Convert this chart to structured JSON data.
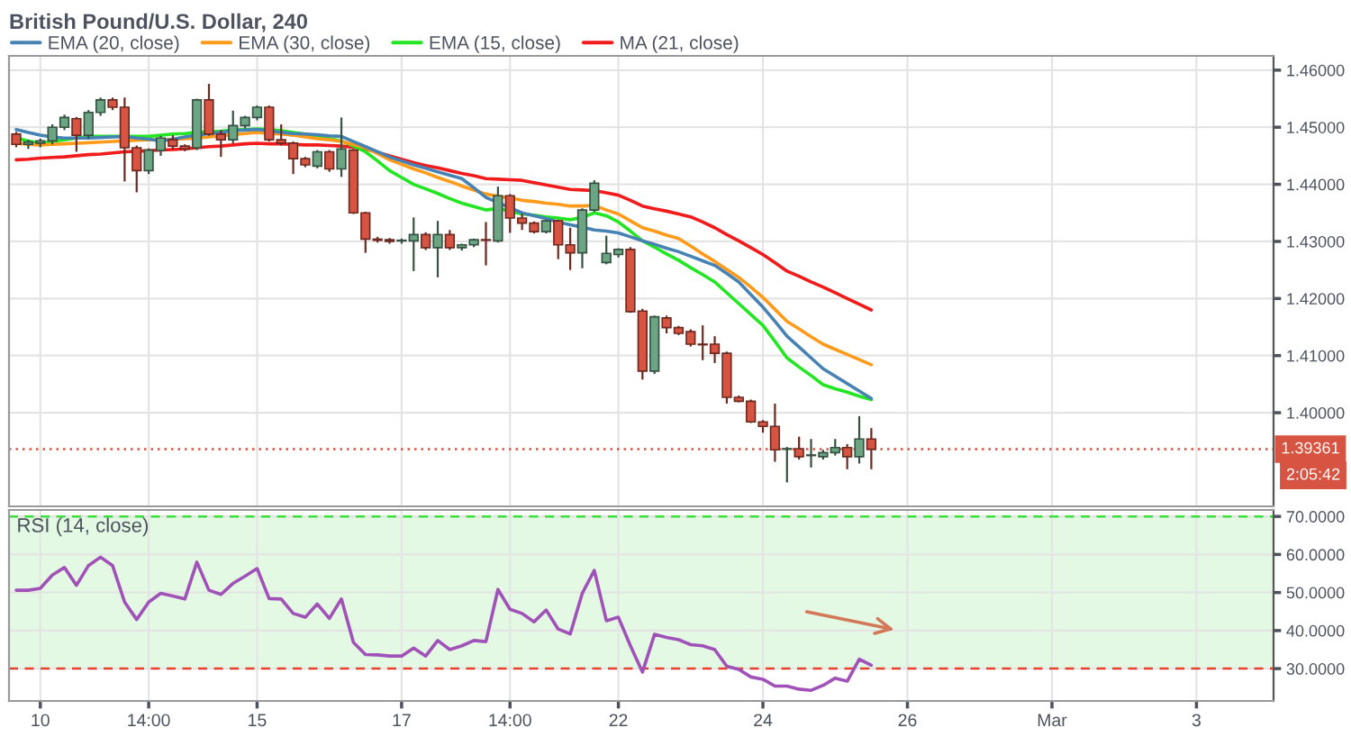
{
  "chart_data": [
    {
      "type": "candlestick",
      "title": "British Pound/U.S. Dollar, 240",
      "categories": [
        null,
        null,
        null,
        null,
        null,
        null,
        null,
        null,
        null,
        null,
        null,
        null,
        null,
        null,
        null,
        null,
        null,
        null,
        null,
        null,
        null,
        null,
        null,
        null,
        null,
        null,
        null,
        null,
        null,
        null,
        null,
        null,
        null,
        null,
        null,
        null,
        null,
        null,
        null,
        null,
        null,
        null,
        null,
        null,
        null,
        null,
        null,
        null,
        null,
        null,
        null,
        null,
        null,
        null,
        null,
        null,
        null,
        null,
        null,
        null,
        null,
        null,
        null,
        null,
        null,
        null,
        null,
        null,
        null,
        null,
        null,
        null,
        null,
        null,
        null,
        null,
        null,
        null,
        null,
        null,
        null,
        null,
        null,
        null,
        null,
        null,
        null,
        null,
        null,
        null,
        null,
        null,
        null,
        null,
        null,
        null,
        null,
        null,
        null,
        null,
        null,
        null,
        null,
        null,
        null
      ],
      "ohlc": [
        [
          1.4488,
          1.4492,
          1.4465,
          1.447
        ],
        [
          1.447,
          1.4478,
          1.4462,
          1.4474
        ],
        [
          1.4472,
          1.448,
          1.4465,
          1.4476
        ],
        [
          1.4476,
          1.4505,
          1.447,
          1.45
        ],
        [
          1.45,
          1.4522,
          1.4495,
          1.4517
        ],
        [
          1.4515,
          1.4518,
          1.4457,
          1.4486
        ],
        [
          1.4486,
          1.453,
          1.448,
          1.4526
        ],
        [
          1.4526,
          1.4552,
          1.452,
          1.4548
        ],
        [
          1.4548,
          1.4552,
          1.453,
          1.4535
        ],
        [
          1.4535,
          1.4552,
          1.4405,
          1.4464
        ],
        [
          1.4464,
          1.4468,
          1.4386,
          1.4424
        ],
        [
          1.4424,
          1.4463,
          1.4418,
          1.446
        ],
        [
          1.4459,
          1.4485,
          1.445,
          1.4481
        ],
        [
          1.4478,
          1.4486,
          1.4462,
          1.4467
        ],
        [
          1.4467,
          1.447,
          1.4458,
          1.4462
        ],
        [
          1.4464,
          1.455,
          1.446,
          1.4548
        ],
        [
          1.4548,
          1.4576,
          1.4485,
          1.4488
        ],
        [
          1.4488,
          1.4495,
          1.4448,
          1.4478
        ],
        [
          1.4478,
          1.4529,
          1.4472,
          1.4503
        ],
        [
          1.4503,
          1.452,
          1.4498,
          1.4517
        ],
        [
          1.4517,
          1.4538,
          1.4512,
          1.4535
        ],
        [
          1.4535,
          1.4538,
          1.4475,
          1.4478
        ],
        [
          1.4478,
          1.4505,
          1.4468,
          1.4472
        ],
        [
          1.4472,
          1.4475,
          1.4418,
          1.4445
        ],
        [
          1.4445,
          1.4448,
          1.443,
          1.4434
        ],
        [
          1.4432,
          1.446,
          1.4428,
          1.4457
        ],
        [
          1.4457,
          1.446,
          1.4422,
          1.4427
        ],
        [
          1.4427,
          1.4517,
          1.4413,
          1.4462
        ],
        [
          1.446,
          1.4462,
          1.4348,
          1.435
        ],
        [
          1.435,
          1.4352,
          1.428,
          1.4304
        ],
        [
          1.4304,
          1.4308,
          1.4298,
          1.4302
        ],
        [
          1.4303,
          1.4306,
          1.4296,
          1.43
        ],
        [
          1.4301,
          1.4305,
          1.4296,
          1.4302
        ],
        [
          1.4301,
          1.4342,
          1.4248,
          1.4312
        ],
        [
          1.4312,
          1.4316,
          1.4285,
          1.4289
        ],
        [
          1.4289,
          1.4336,
          1.4237,
          1.4312
        ],
        [
          1.4312,
          1.432,
          1.4285,
          1.4289
        ],
        [
          1.4289,
          1.4296,
          1.4284,
          1.4294
        ],
        [
          1.4294,
          1.4305,
          1.429,
          1.4303
        ],
        [
          1.4303,
          1.4334,
          1.4258,
          1.4302
        ],
        [
          1.4301,
          1.4396,
          1.4298,
          1.438
        ],
        [
          1.438,
          1.4383,
          1.4315,
          1.4341
        ],
        [
          1.4341,
          1.4348,
          1.432,
          1.4332
        ],
        [
          1.4332,
          1.4335,
          1.4314,
          1.4317
        ],
        [
          1.4317,
          1.4338,
          1.4314,
          1.4336
        ],
        [
          1.4336,
          1.4338,
          1.4269,
          1.4294
        ],
        [
          1.4294,
          1.4324,
          1.425,
          1.428
        ],
        [
          1.428,
          1.4358,
          1.4253,
          1.4355
        ],
        [
          1.4355,
          1.4407,
          1.4352,
          1.4402
        ],
        [
          1.4263,
          1.431,
          1.426,
          1.4279
        ],
        [
          1.4277,
          1.4288,
          1.4272,
          1.4286
        ],
        [
          1.4286,
          1.429,
          1.4175,
          1.4177
        ],
        [
          1.4178,
          1.4182,
          1.4058,
          1.4073
        ],
        [
          1.4073,
          1.417,
          1.4068,
          1.4168
        ],
        [
          1.4166,
          1.417,
          1.4139,
          1.4149
        ],
        [
          1.4149,
          1.4152,
          1.4136,
          1.4139
        ],
        [
          1.4142,
          1.4146,
          1.4116,
          1.412
        ],
        [
          1.412,
          1.4153,
          1.4092,
          1.4119
        ],
        [
          1.412,
          1.4134,
          1.4087,
          1.4104
        ],
        [
          1.4104,
          1.4107,
          1.4016,
          1.4027
        ],
        [
          1.4027,
          1.403,
          1.4018,
          1.402
        ],
        [
          1.402,
          1.4023,
          1.3982,
          1.3984
        ],
        [
          1.3984,
          1.3987,
          1.3965,
          1.3976
        ],
        [
          1.3976,
          1.4016,
          1.3914,
          1.3935
        ],
        [
          1.3936,
          1.394,
          1.3878,
          1.3937
        ],
        [
          1.3937,
          1.3958,
          1.3918,
          1.3923
        ],
        [
          1.3925,
          1.3954,
          1.3904,
          1.3926
        ],
        [
          1.3923,
          1.3935,
          1.3918,
          1.393
        ],
        [
          1.393,
          1.3954,
          1.3925,
          1.3939
        ],
        [
          1.3939,
          1.3945,
          1.3901,
          1.3923
        ],
        [
          1.3923,
          1.3994,
          1.3911,
          1.3954
        ],
        [
          1.3954,
          1.3973,
          1.3901,
          1.3936
        ],
        null,
        null,
        null,
        null,
        null,
        null,
        null,
        null,
        null,
        null,
        null,
        null,
        null,
        null,
        null,
        null,
        null,
        null,
        null,
        null,
        null,
        null,
        null,
        null,
        null,
        null,
        null,
        null,
        null,
        null,
        null,
        null,
        null
      ],
      "colors": [
        "#d75442",
        "#6ba583",
        "#6ba583",
        "#6ba583",
        "#6ba583",
        "#d75442",
        "#6ba583",
        "#6ba583",
        "#d75442",
        "#d75442",
        "#d75442",
        "#6ba583",
        "#6ba583",
        "#d75442",
        "#d75442",
        "#6ba583",
        "#d75442",
        "#d75442",
        "#6ba583",
        "#6ba583",
        "#6ba583",
        "#d75442",
        "#d75442",
        "#d75442",
        "#d75442",
        "#6ba583",
        "#d75442",
        "#6ba583",
        "#d75442",
        "#d75442",
        "#d75442",
        "#d75442",
        "#6ba583",
        "#6ba583",
        "#d75442",
        "#6ba583",
        "#d75442",
        "#6ba583",
        "#6ba583",
        "#d75442",
        "#6ba583",
        "#d75442",
        "#d75442",
        "#d75442",
        "#6ba583",
        "#d75442",
        "#d75442",
        "#6ba583",
        "#6ba583",
        "#6ba583",
        "#6ba583",
        "#d75442",
        "#d75442",
        "#6ba583",
        "#d75442",
        "#d75442",
        "#d75442",
        "#d75442",
        "#d75442",
        "#d75442",
        "#d75442",
        "#d75442",
        "#d75442",
        "#d75442",
        "#6ba583",
        "#d75442",
        "#6ba583",
        "#6ba583",
        "#6ba583",
        "#d75442",
        "#6ba583",
        "#d75442",
        null,
        null,
        null,
        null,
        null,
        null,
        null,
        null,
        null,
        null,
        null,
        null,
        null,
        null,
        null,
        null,
        null,
        null,
        null,
        null,
        null,
        null,
        null,
        null,
        null,
        null,
        null,
        null,
        null,
        null,
        null,
        null,
        null
      ],
      "series": [
        {
          "type": "line",
          "name": "EMA (20, close)",
          "color": "#4682b4",
          "values": [
            1.4496,
            1.4491,
            1.4486,
            1.4483,
            1.4481,
            1.4481,
            1.4481,
            1.4482,
            1.4483,
            1.4484,
            1.4481,
            1.4479,
            1.4476,
            1.4479,
            1.4483,
            1.4486,
            1.4489,
            1.4491,
            1.4494,
            1.4495,
            1.4496,
            1.4494,
            1.4491,
            1.4489,
            1.4488,
            1.4487,
            1.4485,
            1.4484,
            1.4475,
            1.4466,
            1.4457,
            1.4448,
            1.4441,
            1.4434,
            1.4428,
            1.4422,
            1.4416,
            1.441,
            1.4394,
            1.4377,
            1.4368,
            1.4359,
            1.435,
            1.4345,
            1.434,
            1.4334,
            1.4329,
            1.4325,
            1.432,
            1.4318,
            1.4315,
            1.4308,
            1.4301,
            1.4295,
            1.4288,
            1.4282,
            1.4274,
            1.4266,
            1.4258,
            1.4244,
            1.4229,
            1.4207,
            1.4185,
            1.416,
            1.4134,
            1.4115,
            1.4096,
            1.4077,
            1.4064,
            1.4051,
            1.4038,
            1.4025,
            null,
            null,
            null,
            null,
            null,
            null,
            null,
            null,
            null,
            null,
            null,
            null,
            null,
            null,
            null,
            null,
            null,
            null,
            null,
            null,
            null,
            null,
            null,
            null,
            null,
            null,
            null,
            null,
            null,
            null,
            null,
            null,
            null
          ]
        },
        {
          "type": "line",
          "name": "EMA (30, close)",
          "color": "#ff9a1a",
          "values": [
            1.4472,
            1.447,
            1.4469,
            1.447,
            1.4471,
            1.4472,
            1.4473,
            1.4474,
            1.4475,
            1.4476,
            1.4477,
            1.4478,
            1.4478,
            1.4479,
            1.448,
            1.4481,
            1.4483,
            1.4485,
            1.4487,
            1.4489,
            1.4491,
            1.4489,
            1.4488,
            1.4486,
            1.4483,
            1.448,
            1.4478,
            1.4475,
            1.447,
            1.4464,
            1.4454,
            1.4443,
            1.4435,
            1.4427,
            1.442,
            1.4412,
            1.4405,
            1.4397,
            1.439,
            1.4383,
            1.4379,
            1.4376,
            1.4372,
            1.437,
            1.4367,
            1.4365,
            1.4362,
            1.4362,
            1.4363,
            1.4355,
            1.4348,
            1.4336,
            1.4324,
            1.4318,
            1.4311,
            1.4305,
            1.4292,
            1.4278,
            1.4265,
            1.4251,
            1.4237,
            1.422,
            1.4202,
            1.4181,
            1.416,
            1.4147,
            1.4133,
            1.412,
            1.4111,
            1.4102,
            1.4093,
            1.4084,
            null,
            null,
            null,
            null,
            null,
            null,
            null,
            null,
            null,
            null,
            null,
            null,
            null,
            null,
            null,
            null,
            null,
            null,
            null,
            null,
            null,
            null,
            null,
            null,
            null,
            null,
            null,
            null,
            null,
            null,
            null,
            null,
            null
          ]
        },
        {
          "type": "line",
          "name": "EMA (15, close)",
          "color": "#22e622",
          "values": [
            1.4481,
            1.4476,
            1.4472,
            1.4475,
            1.4478,
            1.4481,
            1.4484,
            1.4484,
            1.4484,
            1.4484,
            1.4484,
            1.4484,
            1.4486,
            1.4488,
            1.4489,
            1.4491,
            1.4492,
            1.4493,
            1.4495,
            1.4496,
            1.4497,
            1.4496,
            1.4494,
            1.4491,
            1.4488,
            1.4484,
            1.448,
            1.4476,
            1.4467,
            1.4457,
            1.4441,
            1.4424,
            1.4412,
            1.44,
            1.4392,
            1.4384,
            1.4375,
            1.4367,
            1.4361,
            1.4355,
            1.4358,
            1.4353,
            1.4348,
            1.4346,
            1.4343,
            1.4341,
            1.4338,
            1.4342,
            1.435,
            1.4345,
            1.4334,
            1.4318,
            1.4301,
            1.429,
            1.4278,
            1.4267,
            1.4254,
            1.4242,
            1.4229,
            1.421,
            1.4191,
            1.4172,
            1.4153,
            1.4125,
            1.4096,
            1.408,
            1.4065,
            1.4049,
            1.4042,
            1.4036,
            1.4029,
            1.4023,
            null,
            null,
            null,
            null,
            null,
            null,
            null,
            null,
            null,
            null,
            null,
            null,
            null,
            null,
            null,
            null,
            null,
            null,
            null,
            null,
            null,
            null,
            null,
            null,
            null,
            null,
            null,
            null,
            null,
            null,
            null,
            null,
            null
          ]
        },
        {
          "type": "line",
          "name": "MA (21, close)",
          "color": "#f21b1b",
          "values": [
            1.4443,
            1.4444,
            1.4446,
            1.4447,
            1.4448,
            1.445,
            1.4452,
            1.4453,
            1.4455,
            1.4457,
            1.4458,
            1.4459,
            1.446,
            1.4461,
            1.4462,
            1.4464,
            1.4466,
            1.4467,
            1.4469,
            1.4471,
            1.4472,
            1.4471,
            1.4471,
            1.447,
            1.4469,
            1.4469,
            1.4468,
            1.4467,
            1.4465,
            1.4462,
            1.4456,
            1.445,
            1.4444,
            1.4438,
            1.4433,
            1.4429,
            1.4424,
            1.4419,
            1.4415,
            1.441,
            1.4409,
            1.4408,
            1.4407,
            1.4403,
            1.4399,
            1.4395,
            1.4391,
            1.439,
            1.4389,
            1.4385,
            1.4381,
            1.4372,
            1.4362,
            1.4357,
            1.4353,
            1.4348,
            1.4343,
            1.4334,
            1.4324,
            1.4312,
            1.4301,
            1.4289,
            1.4277,
            1.4263,
            1.4248,
            1.4239,
            1.4229,
            1.422,
            1.421,
            1.42,
            1.419,
            1.418,
            null,
            null,
            null,
            null,
            null,
            null,
            null,
            null,
            null,
            null,
            null,
            null,
            null,
            null,
            null,
            null,
            null,
            null,
            null,
            null,
            null,
            null,
            null,
            null,
            null,
            null,
            null,
            null,
            null,
            null,
            null,
            null,
            null
          ]
        }
      ],
      "ylim": [
        1.3836,
        1.4625
      ],
      "yticks": [
        {
          "value": 1.4,
          "label": "1.40000"
        },
        {
          "value": 1.41,
          "label": "1.41000"
        },
        {
          "value": 1.42,
          "label": "1.42000"
        },
        {
          "value": 1.43,
          "label": "1.43000"
        },
        {
          "value": 1.44,
          "label": "1.44000"
        },
        {
          "value": 1.45,
          "label": "1.45000"
        },
        {
          "value": 1.46,
          "label": "1.46000"
        }
      ],
      "tick_labels": "y",
      "grid": true,
      "legend": "top left",
      "ref_lines": [
        {
          "axis": "y",
          "value": 1.39361,
          "label": "1.39361",
          "color": "#d75442",
          "line_style": "dotted"
        }
      ],
      "annotations": [
        "2:05:42"
      ]
    },
    {
      "type": "line",
      "title": "RSI (14, close)",
      "categories": [
        null,
        null,
        "10",
        null,
        null,
        null,
        null,
        null,
        null,
        null,
        null,
        "14:00",
        null,
        null,
        null,
        null,
        null,
        null,
        null,
        null,
        "15",
        null,
        null,
        null,
        null,
        null,
        null,
        null,
        null,
        null,
        null,
        null,
        "17",
        null,
        null,
        null,
        null,
        null,
        null,
        null,
        null,
        "14:00",
        null,
        null,
        null,
        null,
        null,
        null,
        null,
        null,
        "22",
        null,
        null,
        null,
        null,
        null,
        null,
        null,
        null,
        null,
        null,
        null,
        "24",
        null,
        null,
        null,
        null,
        null,
        null,
        null,
        null,
        null,
        null,
        null,
        "26",
        null,
        null,
        null,
        null,
        null,
        null,
        null,
        null,
        null,
        null,
        null,
        "Mar",
        null,
        null,
        null,
        null,
        null,
        null,
        null,
        null,
        null,
        null,
        null,
        "3",
        null,
        null,
        null,
        null,
        null,
        null
      ],
      "series": [
        {
          "color": "#a052b8",
          "values": [
            50.6,
            50.6,
            51.1,
            54.6,
            56.6,
            51.9,
            57.1,
            59.3,
            57.1,
            47.5,
            42.9,
            47.5,
            49.8,
            49.1,
            48.3,
            58.0,
            50.6,
            49.5,
            52.4,
            54.3,
            56.3,
            48.4,
            48.3,
            44.5,
            43.5,
            47.0,
            43.2,
            48.3,
            36.9,
            33.7,
            33.6,
            33.3,
            33.3,
            35.4,
            33.3,
            37.4,
            35.0,
            36.0,
            37.4,
            37.1,
            50.8,
            45.6,
            44.5,
            42.3,
            45.4,
            40.4,
            39.1,
            49.8,
            55.8,
            42.6,
            43.5,
            36.0,
            29.1,
            39.0,
            38.2,
            37.6,
            36.3,
            36.0,
            35.0,
            30.6,
            29.8,
            27.8,
            27.2,
            25.4,
            25.4,
            24.6,
            24.3,
            25.6,
            27.5,
            26.7,
            32.5,
            30.9,
            null,
            null,
            null,
            null,
            null,
            null,
            null,
            null,
            null,
            null,
            null,
            null,
            null,
            null,
            null,
            null,
            null,
            null,
            null,
            null,
            null,
            null,
            null,
            null,
            null,
            null,
            null,
            null,
            null,
            null,
            null,
            null,
            null
          ]
        }
      ],
      "ylim": [
        21.5,
        71.7
      ],
      "yticks": [
        {
          "value": 30,
          "label": "30.0000"
        },
        {
          "value": 40,
          "label": "40.0000"
        },
        {
          "value": 50,
          "label": "50.0000"
        },
        {
          "value": 60,
          "label": "60.0000"
        },
        {
          "value": 70,
          "label": "70.0000"
        }
      ],
      "grid": true,
      "ref_lines": [
        {
          "axis": "y",
          "value": 70,
          "color": "#3ce03c",
          "line_style": "dashed"
        },
        {
          "axis": "y",
          "value": 30,
          "color": "#e8412e",
          "line_style": "dashed"
        }
      ],
      "bands": [
        {
          "axis": "y",
          "from": 30,
          "to": 70,
          "color": "#e3f9e3"
        }
      ]
    }
  ]
}
